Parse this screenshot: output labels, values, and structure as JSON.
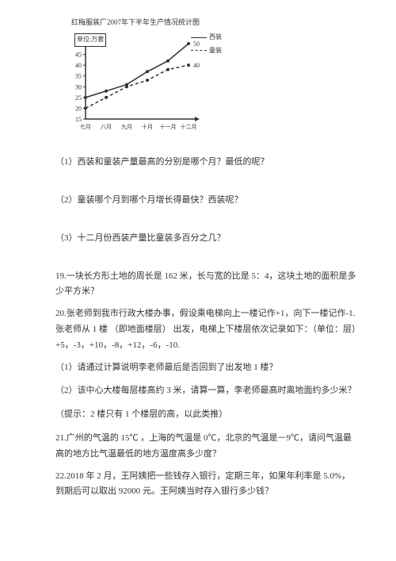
{
  "chart": {
    "title": "红梅服装厂2007年下半年生产情况统计图",
    "y_unit_label": "单位:万套",
    "legend": [
      "西装",
      "童装"
    ],
    "x_labels": [
      "七月",
      "八月",
      "九月",
      "十月",
      "十一月",
      "十二月"
    ],
    "y_ticks": [
      15,
      20,
      25,
      30,
      35,
      40,
      45,
      50
    ],
    "series_solid": [
      25,
      28,
      31,
      37,
      42,
      50
    ],
    "series_dashed": [
      20,
      25,
      30,
      33,
      38,
      40
    ],
    "last_labels": {
      "solid": "50",
      "dashed": "40"
    },
    "colors": {
      "axis": "#333333",
      "grid": "#888888",
      "line": "#333333"
    }
  },
  "q1": "（1）西装和童装产量最高的分别是哪个月？最低的呢？",
  "q2": "（2）童装哪个月到哪个月增长得最快？西装呢？",
  "q3": "（3）十二月份西装产量比童装多百分之几？",
  "p19": "19.一块长方形土地的周长是 162 米，长与宽的比是 5：4，这块土地的面积是多少平方米？",
  "p20_a": "20.张老师到我市行政大楼办事，假设乘电梯向上一楼记作+1，向下一楼记作-1. 张老师从 1 楼 （即地面楼层） 出发，电梯上下楼层依次记录如下：（单位：层）+5，-3，+10，-8，+12，-6，-10.",
  "p20_q1": "（1）请通过计算说明李老师最后是否回到了出发地 1 楼？",
  "p20_q2": "（2）该中心大楼每层楼高约 3 米，请算一算，李老师最高时离地面约多少米？",
  "p20_hint": "（提示：2 楼只有 1 个楼层的高，以此类推）",
  "p21": "21.广州的气温的 15℃ ，上海的气温是 0℃，北京的气温是－9℃，请问气温最高的地方比气温最低的地方温度高多少度？",
  "p22": "22.2018 年 2 月，王阿姨把一些钱存入银行，定期三年，如果年利率是 5.0%，到期后可以取出 92000 元。王阿姨当时存入银行多少钱？"
}
